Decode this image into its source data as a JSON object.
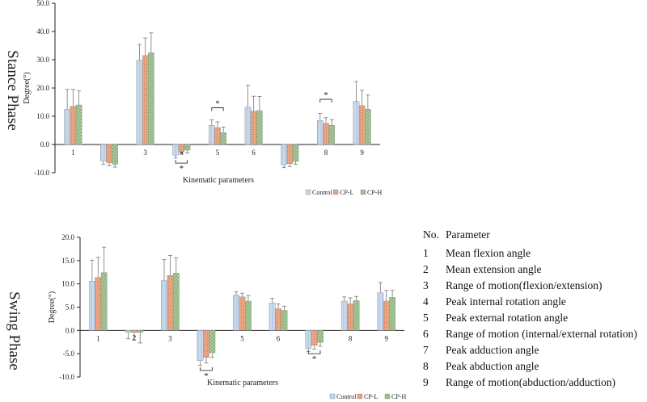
{
  "colors": {
    "control": "#c9d9ee",
    "cpl": "#e8a782",
    "cph": "#b3d1a5",
    "axis": "#222222"
  },
  "chart_data": [
    {
      "type": "bar",
      "panel_label": "Stance Phase",
      "categories": [
        "1",
        "2",
        "3",
        "4",
        "5",
        "6",
        "7",
        "8",
        "9"
      ],
      "ylabel": "Degree(°)",
      "xlabel": "Kinematic parameters",
      "ylim": [
        -10,
        50
      ],
      "yticks": [
        -10,
        0,
        10,
        20,
        30,
        40,
        50
      ],
      "ytick_labels": [
        "-10.0",
        "0.0",
        "10.0",
        "20.0",
        "30.0",
        "40.0",
        "50.0"
      ],
      "series": [
        {
          "name": "Control",
          "values": [
            12.5,
            -5.8,
            29.8,
            -3.8,
            6.8,
            13.2,
            -7.2,
            8.5,
            15.3
          ],
          "errors": [
            7.0,
            1.2,
            5.6,
            1.0,
            2.0,
            7.8,
            1.0,
            2.5,
            7.0
          ]
        },
        {
          "name": "CP-L",
          "values": [
            13.5,
            -6.5,
            31.5,
            -2.5,
            6.0,
            11.8,
            -6.8,
            7.5,
            13.8
          ],
          "errors": [
            6.0,
            1.0,
            6.2,
            1.0,
            2.0,
            5.3,
            1.0,
            2.0,
            5.4
          ]
        },
        {
          "name": "CP-H",
          "values": [
            14.0,
            -7.0,
            32.5,
            -2.0,
            4.2,
            12.0,
            -6.0,
            6.8,
            12.5
          ],
          "errors": [
            5.0,
            1.0,
            7.0,
            1.0,
            2.0,
            5.0,
            1.0,
            2.0,
            5.0
          ]
        }
      ],
      "annotations": [
        "*",
        "*",
        "*"
      ],
      "legend": "bottom-right"
    },
    {
      "type": "bar",
      "panel_label": "Swing Phase",
      "categories": [
        "1",
        "2",
        "3",
        "4",
        "5",
        "6",
        "7",
        "8",
        "9"
      ],
      "ylabel": "Degree(°)",
      "xlabel": "Kinematic parameters",
      "ylim": [
        -10,
        20
      ],
      "yticks": [
        -10,
        -5,
        0,
        5,
        10,
        15,
        20
      ],
      "ytick_labels": [
        "-10.0",
        "-5.0",
        "0.0",
        "5.0",
        "10.0",
        "15.0",
        "20.0"
      ],
      "series": [
        {
          "name": "Control",
          "values": [
            10.6,
            -0.4,
            10.7,
            -6.5,
            7.6,
            5.9,
            -3.9,
            6.3,
            8.1
          ],
          "errors": [
            4.5,
            1.4,
            4.5,
            1.0,
            0.7,
            1.0,
            0.6,
            0.9,
            2.2
          ]
        },
        {
          "name": "CP-L",
          "values": [
            11.4,
            -0.4,
            11.8,
            -5.8,
            7.2,
            4.7,
            -3.2,
            5.7,
            6.3
          ],
          "errors": [
            4.3,
            1.7,
            4.3,
            1.2,
            0.8,
            1.0,
            0.8,
            1.3,
            2.3
          ]
        },
        {
          "name": "CP-H",
          "values": [
            12.4,
            -0.4,
            12.3,
            -4.8,
            6.3,
            4.3,
            -2.6,
            6.4,
            7.1
          ],
          "errors": [
            5.5,
            2.3,
            3.3,
            1.0,
            1.2,
            0.9,
            0.8,
            0.9,
            1.5
          ]
        }
      ],
      "annotations": [
        "*",
        "*"
      ],
      "legend": "bottom-right"
    }
  ],
  "parameter_table": {
    "header_no": "No.",
    "header_param": "Parameter",
    "rows": [
      {
        "no": "1",
        "label": "Mean flexion angle"
      },
      {
        "no": "2",
        "label": "Mean extension angle"
      },
      {
        "no": "3",
        "label": "Range of motion(flexion/extension)"
      },
      {
        "no": "4",
        "label": "Peak internal rotation angle"
      },
      {
        "no": "5",
        "label": "Peak external rotation angle"
      },
      {
        "no": "6",
        "label": "Range of motion (internal/external rotation)"
      },
      {
        "no": "7",
        "label": "Peak adduction angle"
      },
      {
        "no": "8",
        "label": "Peak abduction angle"
      },
      {
        "no": "9",
        "label": "Range of motion(abduction/adduction)"
      }
    ]
  }
}
